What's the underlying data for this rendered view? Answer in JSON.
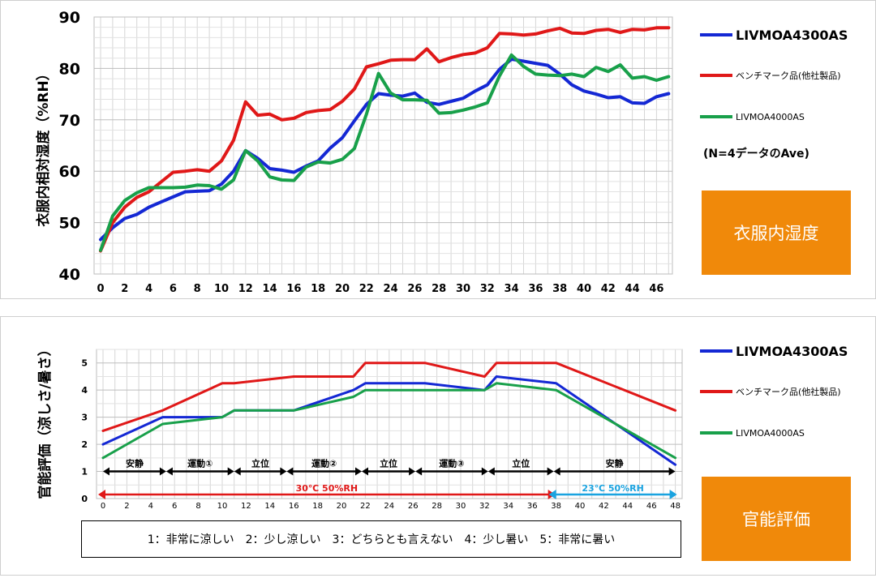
{
  "charts": {
    "humidity": {
      "ylabel": "衣服内相対湿度（%RH）",
      "badge": "衣服内湿度",
      "note": "(N=4データのAve)"
    },
    "sensory": {
      "ylabel": "官能評価（涼しさ/暑さ）",
      "badge": "官能評価",
      "scale_legend": "1：非常に涼しい　2：少し涼しい　3：どちらとも言えない　4：少し暑い　5：非常に暑い"
    }
  },
  "chart_data": [
    {
      "type": "line",
      "ylabel": "衣服内相対湿度（%RH）",
      "ylim": [
        40,
        90
      ],
      "yticks": [
        40,
        50,
        60,
        70,
        80,
        90
      ],
      "xticks": [
        0,
        2,
        4,
        6,
        8,
        10,
        12,
        14,
        16,
        18,
        20,
        22,
        24,
        26,
        28,
        30,
        32,
        34,
        36,
        38,
        40,
        42,
        44,
        46
      ],
      "xlim": [
        0,
        47
      ],
      "grid": true,
      "legend_position": "right",
      "series": [
        {
          "name": "LIVMOA4300AS",
          "color": "#1428d4",
          "x": [
            0,
            1,
            2,
            3,
            4,
            5,
            6,
            7,
            8,
            9,
            10,
            11,
            12,
            13,
            14,
            15,
            16,
            17,
            18,
            19,
            20,
            21,
            22,
            23,
            24,
            25,
            26,
            27,
            28,
            29,
            30,
            31,
            32,
            33,
            34,
            35,
            36,
            37,
            38,
            39,
            40,
            41,
            42,
            43,
            44,
            45,
            46,
            47
          ],
          "y": [
            46.7,
            49.0,
            50.8,
            51.6,
            53.0,
            54.0,
            55.0,
            56.0,
            56.1,
            56.2,
            57.5,
            60.0,
            64.0,
            62.5,
            60.5,
            60.2,
            59.8,
            61.0,
            62.0,
            64.5,
            66.5,
            69.8,
            73.0,
            75.1,
            74.8,
            74.6,
            75.2,
            73.4,
            73.0,
            73.6,
            74.2,
            75.6,
            76.8,
            79.8,
            81.8,
            81.4,
            81.0,
            80.6,
            78.9,
            76.8,
            75.6,
            75.0,
            74.3,
            74.5,
            73.3,
            73.2,
            74.5,
            75.1
          ]
        },
        {
          "name": "ベンチマーク品(他社製品)",
          "color": "#e01818",
          "x": [
            0,
            1,
            2,
            3,
            4,
            5,
            6,
            7,
            8,
            9,
            10,
            11,
            12,
            13,
            14,
            15,
            16,
            17,
            18,
            19,
            20,
            21,
            22,
            23,
            24,
            25,
            26,
            27,
            28,
            29,
            30,
            31,
            32,
            33,
            34,
            35,
            36,
            37,
            38,
            39,
            40,
            41,
            42,
            43,
            44,
            45,
            46,
            47
          ],
          "y": [
            44.5,
            50.0,
            53.0,
            54.9,
            56.0,
            57.9,
            59.8,
            60.0,
            60.3,
            60.0,
            62.0,
            66.0,
            73.5,
            70.9,
            71.1,
            70.0,
            70.3,
            71.4,
            71.8,
            72.0,
            73.6,
            76.0,
            80.3,
            80.9,
            81.6,
            81.7,
            81.7,
            83.8,
            81.3,
            82.1,
            82.7,
            83.0,
            84.0,
            86.8,
            86.7,
            86.5,
            86.7,
            87.3,
            87.8,
            86.9,
            86.8,
            87.4,
            87.6,
            87.0,
            87.6,
            87.5,
            87.9,
            87.9
          ]
        },
        {
          "name": "LIVMOA4000AS",
          "color": "#18a04a",
          "x": [
            0,
            1,
            2,
            3,
            4,
            5,
            6,
            7,
            8,
            9,
            10,
            11,
            12,
            13,
            14,
            15,
            16,
            17,
            18,
            19,
            20,
            21,
            22,
            23,
            24,
            25,
            26,
            27,
            28,
            29,
            30,
            31,
            32,
            33,
            34,
            35,
            36,
            37,
            38,
            39,
            40,
            41,
            42,
            43,
            44,
            45,
            46,
            47
          ],
          "y": [
            44.6,
            51.3,
            54.3,
            55.8,
            56.8,
            56.8,
            56.8,
            56.9,
            57.3,
            57.2,
            56.5,
            58.3,
            64.0,
            62.0,
            58.9,
            58.3,
            58.2,
            60.8,
            61.8,
            61.6,
            62.3,
            64.4,
            71.1,
            79.0,
            75.2,
            73.9,
            73.9,
            73.8,
            71.3,
            71.4,
            71.9,
            72.5,
            73.3,
            78.5,
            82.6,
            80.4,
            78.9,
            78.7,
            78.6,
            78.9,
            78.4,
            80.2,
            79.4,
            80.7,
            78.1,
            78.4,
            77.7,
            78.4
          ]
        }
      ],
      "annotations": [
        "(N=4データのAve)"
      ]
    },
    {
      "type": "line",
      "ylabel": "官能評価（涼しさ/暑さ）",
      "ylim": [
        0,
        5.5
      ],
      "yticks": [
        0,
        1,
        2,
        3,
        4,
        5
      ],
      "xticks": [
        0,
        2,
        4,
        6,
        8,
        10,
        12,
        14,
        16,
        18,
        20,
        22,
        24,
        26,
        28,
        30,
        32,
        34,
        36,
        38,
        40,
        42,
        44,
        46,
        48
      ],
      "xlim": [
        0,
        48
      ],
      "grid": true,
      "legend_position": "right",
      "series": [
        {
          "name": "LIVMOA4300AS",
          "color": "#1428d4",
          "x": [
            0,
            5,
            10,
            11,
            16,
            21,
            22,
            27,
            32,
            33,
            38,
            48
          ],
          "y": [
            2.0,
            3.0,
            3.0,
            3.25,
            3.25,
            4.0,
            4.25,
            4.25,
            4.0,
            4.5,
            4.25,
            1.25
          ]
        },
        {
          "name": "ベンチマーク品(他社製品)",
          "color": "#e01818",
          "x": [
            0,
            5,
            10,
            11,
            16,
            21,
            22,
            27,
            32,
            33,
            38,
            48
          ],
          "y": [
            2.5,
            3.25,
            4.25,
            4.25,
            4.5,
            4.5,
            5.0,
            5.0,
            4.5,
            5.0,
            5.0,
            3.25
          ]
        },
        {
          "name": "LIVMOA4000AS",
          "color": "#18a04a",
          "x": [
            0,
            5,
            10,
            11,
            16,
            21,
            22,
            27,
            32,
            33,
            38,
            48
          ],
          "y": [
            1.5,
            2.75,
            3.0,
            3.25,
            3.25,
            3.75,
            4.0,
            4.0,
            4.0,
            4.25,
            4.0,
            1.5
          ]
        }
      ],
      "phases": [
        {
          "label": "安静",
          "from": 0,
          "to": 5.3
        },
        {
          "label": "運動①",
          "from": 5.3,
          "to": 11
        },
        {
          "label": "立位",
          "from": 11,
          "to": 15.4
        },
        {
          "label": "運動②",
          "from": 15.4,
          "to": 21.7
        },
        {
          "label": "立位",
          "from": 21.7,
          "to": 26.2
        },
        {
          "label": "運動③",
          "from": 26.2,
          "to": 32.3
        },
        {
          "label": "立位",
          "from": 32.3,
          "to": 37.8
        },
        {
          "label": "安静",
          "from": 37.8,
          "to": 48
        }
      ],
      "conditions": [
        {
          "label": "30℃ 50%RH",
          "from": 0,
          "to": 37.8,
          "color": "#e01818"
        },
        {
          "label": "23℃ 50%RH",
          "from": 37.8,
          "to": 48,
          "color": "#1aa3e0"
        }
      ]
    }
  ]
}
